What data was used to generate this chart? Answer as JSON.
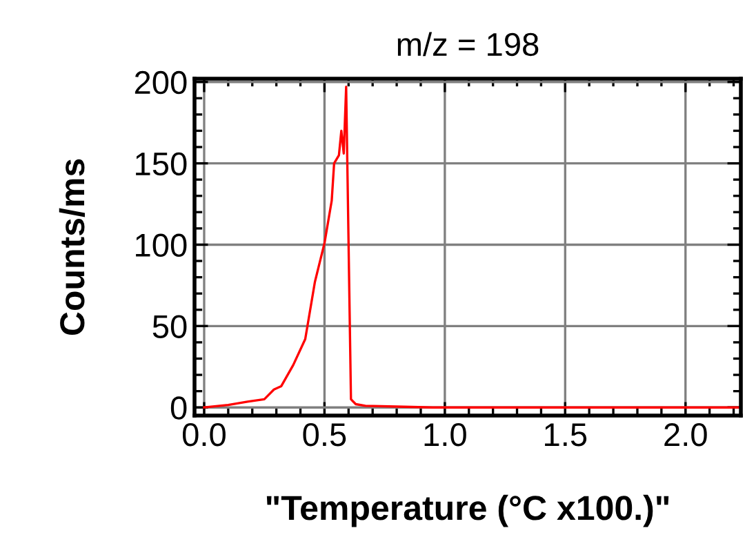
{
  "chart_data": {
    "type": "line",
    "title": "m/z = 198",
    "xlabel": "\"Temperature (°C x100.)\"",
    "ylabel": "Counts/ms",
    "series": [
      {
        "color": "#ff0000",
        "x": [
          0.0,
          0.1,
          0.18,
          0.25,
          0.29,
          0.32,
          0.37,
          0.42,
          0.46,
          0.5,
          0.53,
          0.54,
          0.56,
          0.57,
          0.58,
          0.59,
          0.61,
          0.63,
          0.67,
          0.8,
          0.95,
          1.2,
          1.6,
          2.0,
          2.22
        ],
        "values": [
          0,
          1.5,
          3.5,
          5,
          11,
          13,
          26,
          42,
          77,
          101,
          127,
          150,
          155,
          170,
          156,
          197,
          5,
          2,
          1,
          0.5,
          0,
          0,
          0,
          0,
          0
        ]
      }
    ],
    "xlim": [
      -0.04,
      2.23
    ],
    "ylim": [
      -5,
      202
    ],
    "xticks": [
      {
        "value": 0,
        "label": "0.0"
      },
      {
        "value": 0.5,
        "label": "0.5"
      },
      {
        "value": 1,
        "label": "1.0"
      },
      {
        "value": 1.5,
        "label": "1.5"
      },
      {
        "value": 2,
        "label": "2.0"
      }
    ],
    "yticks": [
      0,
      50,
      100,
      150,
      200
    ],
    "grid": true,
    "legend": false,
    "marker": "none",
    "line_style": "solid"
  }
}
